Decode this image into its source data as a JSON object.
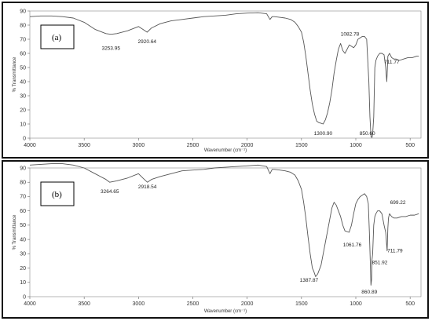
{
  "chart_data": [
    {
      "type": "line",
      "panel_label": "(a)",
      "xlabel": "Wavenumber (cm⁻¹)",
      "ylabel": "% Transmittance",
      "xlim": [
        4000,
        400
      ],
      "ylim": [
        0,
        90
      ],
      "x_ticks": [
        4000,
        3500,
        3000,
        2500,
        2000,
        1500,
        1000,
        500
      ],
      "y_ticks": [
        0,
        10,
        20,
        30,
        40,
        50,
        60,
        70,
        80,
        90
      ],
      "x_tick_labels": [
        "4000",
        "3500",
        "3000",
        "2500",
        "2000",
        "1500",
        "1000",
        "500"
      ],
      "y_tick_labels": [
        "0",
        "10",
        "20",
        "30",
        "40",
        "50",
        "60",
        "70",
        "80",
        "90"
      ],
      "x": [
        4000,
        3900,
        3800,
        3700,
        3600,
        3500,
        3400,
        3300,
        3253.95,
        3200,
        3100,
        3000,
        2960,
        2920.64,
        2880,
        2800,
        2700,
        2600,
        2500,
        2400,
        2300,
        2200,
        2100,
        2000,
        1900,
        1820,
        1790,
        1770,
        1750,
        1700,
        1650,
        1600,
        1560,
        1530,
        1500,
        1480,
        1460,
        1440,
        1420,
        1400,
        1380,
        1360,
        1340,
        1320,
        1300.9,
        1280,
        1260,
        1240,
        1220,
        1200,
        1180,
        1160,
        1140,
        1120,
        1100,
        1082.78,
        1060,
        1040,
        1020,
        1000,
        980,
        960,
        940,
        920,
        900,
        880,
        870,
        860,
        850.6,
        845,
        835,
        825,
        815,
        800,
        780,
        760,
        740,
        725,
        715,
        711.77,
        705,
        690,
        670,
        650,
        630,
        600,
        560,
        520,
        480,
        440,
        420
      ],
      "values": [
        86,
        86.5,
        86.5,
        86,
        85,
        82,
        77,
        74,
        73.5,
        74,
        76,
        79,
        77,
        75,
        78,
        81,
        83,
        84,
        85,
        86,
        86.5,
        87,
        88,
        88.5,
        88.8,
        88,
        84,
        86,
        86,
        85.5,
        85,
        84,
        82,
        79,
        75,
        68,
        58,
        46,
        34,
        24,
        17,
        12,
        11,
        10.5,
        10,
        13,
        18,
        25,
        34,
        46,
        55,
        63,
        67,
        62,
        60,
        62.5,
        66,
        65,
        64,
        66,
        70,
        71,
        72,
        72,
        70,
        40,
        15,
        1,
        0.5,
        3,
        15,
        50,
        55,
        58,
        60,
        60,
        59,
        50,
        40,
        45,
        58,
        60,
        57,
        56,
        56,
        55,
        56,
        57,
        57,
        58,
        58
      ],
      "annotations": [
        "3253.95",
        "2920.64",
        "1300.90",
        "1082.78",
        "850.60",
        "711.77"
      ],
      "annotation_x": [
        3253.95,
        2920.64,
        1300.9,
        1082.78,
        850.6,
        711.77
      ]
    },
    {
      "type": "line",
      "panel_label": "(b)",
      "xlabel": "Wavenumber (cm⁻¹)",
      "ylabel": "% Transmittance",
      "xlim": [
        4000,
        400
      ],
      "ylim": [
        0,
        90
      ],
      "x_ticks": [
        4000,
        3500,
        3000,
        2500,
        2000,
        1500,
        1000,
        500
      ],
      "y_ticks": [
        0,
        10,
        20,
        30,
        40,
        50,
        60,
        70,
        80,
        90
      ],
      "x_tick_labels": [
        "4000",
        "3500",
        "3000",
        "2500",
        "2000",
        "1500",
        "1000",
        "500"
      ],
      "y_tick_labels": [
        "0",
        "10",
        "20",
        "30",
        "40",
        "50",
        "60",
        "70",
        "80",
        "90"
      ],
      "x": [
        4000,
        3900,
        3800,
        3700,
        3600,
        3500,
        3400,
        3300,
        3264.65,
        3200,
        3100,
        3000,
        2960,
        2918.54,
        2880,
        2800,
        2700,
        2600,
        2500,
        2400,
        2300,
        2200,
        2100,
        2000,
        1900,
        1820,
        1790,
        1770,
        1750,
        1700,
        1650,
        1600,
        1560,
        1530,
        1500,
        1480,
        1460,
        1440,
        1420,
        1400,
        1387.87,
        1370,
        1350,
        1320,
        1300,
        1280,
        1260,
        1240,
        1220,
        1200,
        1180,
        1160,
        1140,
        1120,
        1100,
        1061.76,
        1040,
        1020,
        1000,
        980,
        960,
        940,
        920,
        900,
        885,
        875,
        865,
        860.89,
        855,
        851.92,
        845,
        835,
        825,
        815,
        800,
        780,
        760,
        740,
        725,
        711.79,
        705,
        699.22,
        690,
        670,
        650,
        620,
        580,
        540,
        500,
        460,
        420
      ],
      "values": [
        92,
        92.5,
        93,
        93,
        92,
        90,
        86,
        82,
        80,
        81,
        83,
        86,
        83,
        80,
        82,
        84,
        86,
        88,
        88.5,
        89,
        90,
        90.5,
        91,
        91.5,
        92,
        91,
        86,
        89,
        89,
        88.5,
        88,
        87,
        85,
        81,
        75,
        66,
        55,
        42,
        30,
        20,
        18,
        14,
        16,
        22,
        30,
        38,
        46,
        54,
        62,
        66,
        64,
        60,
        56,
        50,
        46,
        45,
        50,
        58,
        65,
        68,
        70,
        71,
        72,
        70,
        65,
        45,
        20,
        8,
        12,
        25,
        30,
        50,
        56,
        58,
        60,
        60,
        58,
        50,
        45,
        32,
        48,
        55,
        58,
        56,
        55,
        55,
        56,
        56,
        57,
        57,
        58
      ],
      "annotations": [
        "3264.65",
        "2918.54",
        "1387.87",
        "1061.76",
        "860.89",
        "851.92",
        "711.79",
        "699.22"
      ],
      "annotation_x": [
        3264.65,
        2918.54,
        1387.87,
        1061.76,
        860.89,
        851.92,
        711.79,
        699.22
      ]
    }
  ]
}
